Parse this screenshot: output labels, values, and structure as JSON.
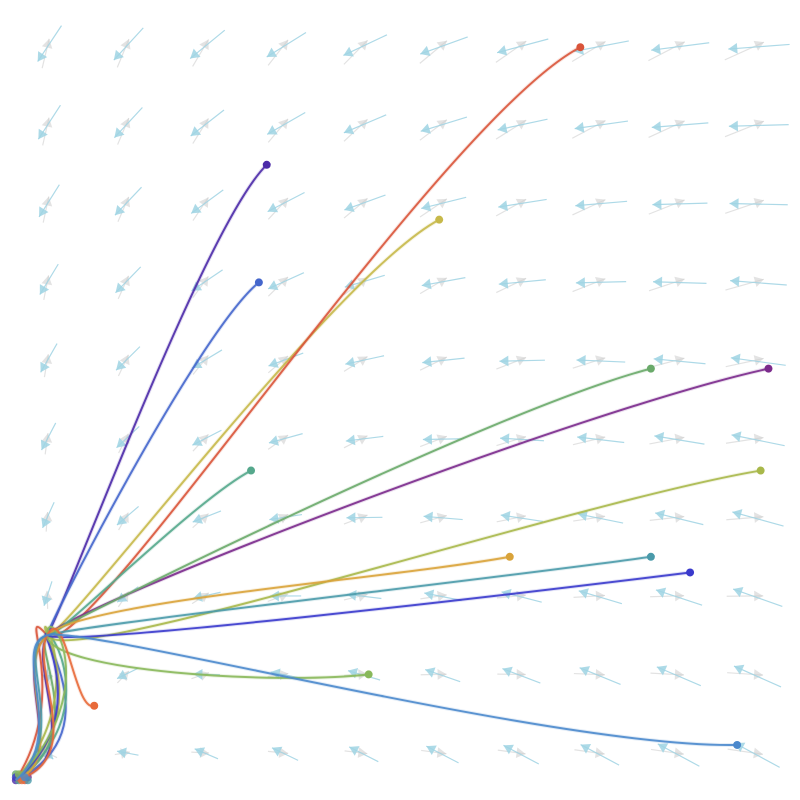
{
  "figure": {
    "type": "vector-field-with-trajectories",
    "colors": {
      "background": "#ffffff",
      "arrow_primary": "#9fd3e3",
      "arrow_secondary": "#d0d0d0"
    }
  },
  "vector_field": {
    "grid": {
      "cols": 10,
      "rows": 10,
      "x_range": [
        0,
        1
      ],
      "y_range": [
        0,
        1
      ]
    },
    "description_note": ""
  },
  "trajectories": [
    {
      "id": "t1",
      "color": "#4b2aa8",
      "end": [
        0.33,
        0.8
      ]
    },
    {
      "id": "t2",
      "color": "#4466cc",
      "end": [
        0.32,
        0.65
      ]
    },
    {
      "id": "t3",
      "color": "#c7b94a",
      "end": [
        0.55,
        0.73
      ]
    },
    {
      "id": "t4",
      "color": "#d9543a",
      "end": [
        0.73,
        0.95
      ]
    },
    {
      "id": "t5",
      "color": "#7b2a8c",
      "end": [
        0.97,
        0.54
      ]
    },
    {
      "id": "t6",
      "color": "#6aaa6a",
      "end": [
        0.82,
        0.54
      ]
    },
    {
      "id": "t7",
      "color": "#55a88c",
      "end": [
        0.31,
        0.41
      ]
    },
    {
      "id": "t8",
      "color": "#a8b84a",
      "end": [
        0.96,
        0.41
      ]
    },
    {
      "id": "t9",
      "color": "#d9a33a",
      "end": [
        0.64,
        0.3
      ]
    },
    {
      "id": "t10",
      "color": "#4a9aaa",
      "end": [
        0.82,
        0.3
      ]
    },
    {
      "id": "t11",
      "color": "#3a3acc",
      "end": [
        0.87,
        0.28
      ]
    },
    {
      "id": "t12",
      "color": "#88b85a",
      "end": [
        0.46,
        0.15
      ]
    },
    {
      "id": "t13",
      "color": "#e86a3a",
      "end": [
        0.11,
        0.11
      ]
    },
    {
      "id": "t14",
      "color": "#4a88cc",
      "end": [
        0.93,
        0.06
      ]
    }
  ]
}
